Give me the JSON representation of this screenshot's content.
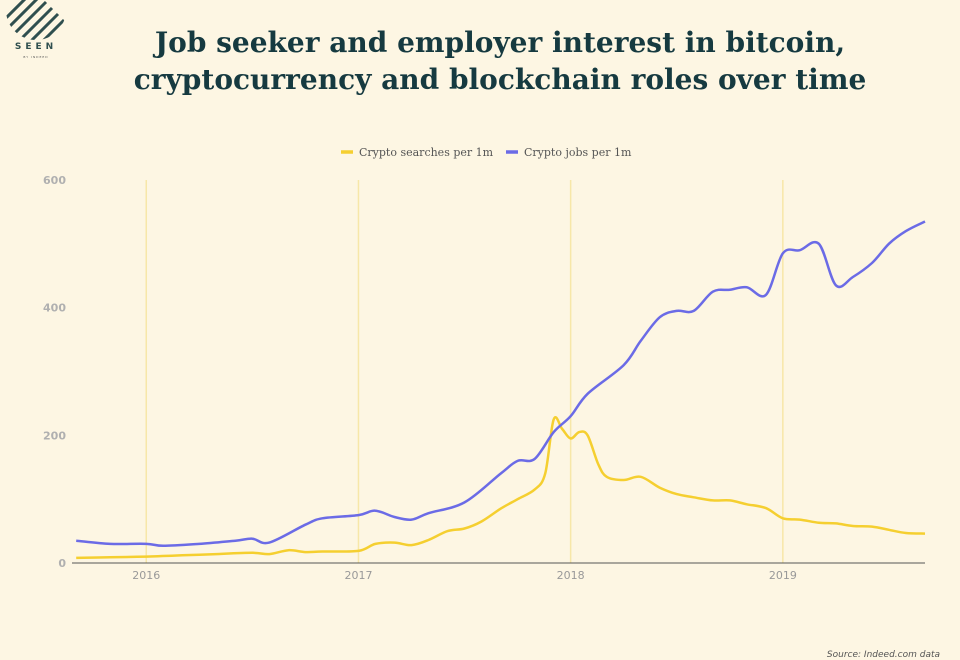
{
  "header": {
    "title_line1": "Job seeker and employer interest in bitcoin,",
    "title_line2": "cryptocurrency and blockchain roles over time",
    "logo_text": "SEEN",
    "logo_subtext": "BY INDEED"
  },
  "footer": {
    "source": "Source: Indeed.com data"
  },
  "colors": {
    "searches": "#f5cf30",
    "jobs": "#6b6be6",
    "grid": "#f7e7a8",
    "axis": "#555555"
  },
  "chart_data": {
    "type": "line",
    "title": "Job seeker and employer interest in bitcoin, cryptocurrency and blockchain roles over time",
    "xlim": [
      2015.65,
      2019.67
    ],
    "ylim": [
      0,
      600
    ],
    "y_ticks": [
      0,
      200,
      400,
      600
    ],
    "x_ticks": [
      {
        "label": "2016",
        "value": 2016
      },
      {
        "label": "2017",
        "value": 2017
      },
      {
        "label": "2018",
        "value": 2018
      },
      {
        "label": "2019",
        "value": 2019
      }
    ],
    "grid": "vertical at year boundaries",
    "legend_position": "top",
    "series": [
      {
        "name": "Crypto searches per 1m",
        "color": "#f5cf30",
        "x": [
          2015.67,
          2015.83,
          2016.0,
          2016.17,
          2016.33,
          2016.5,
          2016.58,
          2016.67,
          2016.75,
          2016.83,
          2017.0,
          2017.08,
          2017.17,
          2017.25,
          2017.33,
          2017.42,
          2017.5,
          2017.58,
          2017.67,
          2017.75,
          2017.83,
          2017.88,
          2017.92,
          2017.96,
          2018.0,
          2018.04,
          2018.08,
          2018.13,
          2018.17,
          2018.25,
          2018.33,
          2018.42,
          2018.5,
          2018.58,
          2018.67,
          2018.75,
          2018.83,
          2018.92,
          2019.0,
          2019.08,
          2019.17,
          2019.25,
          2019.33,
          2019.42,
          2019.5,
          2019.58,
          2019.67
        ],
        "values": [
          8,
          9,
          10,
          12,
          14,
          16,
          14,
          20,
          17,
          18,
          19,
          30,
          32,
          28,
          36,
          50,
          54,
          65,
          85,
          100,
          115,
          140,
          225,
          210,
          195,
          205,
          200,
          155,
          135,
          130,
          135,
          118,
          108,
          103,
          98,
          98,
          92,
          86,
          70,
          68,
          63,
          62,
          58,
          57,
          52,
          47,
          46
        ]
      },
      {
        "name": "Crypto jobs per 1m",
        "color": "#6b6be6",
        "x": [
          2015.67,
          2015.83,
          2016.0,
          2016.08,
          2016.25,
          2016.42,
          2016.5,
          2016.58,
          2016.75,
          2016.83,
          2017.0,
          2017.08,
          2017.17,
          2017.25,
          2017.33,
          2017.5,
          2017.67,
          2017.75,
          2017.83,
          2017.92,
          2018.0,
          2018.08,
          2018.25,
          2018.33,
          2018.42,
          2018.5,
          2018.58,
          2018.67,
          2018.75,
          2018.83,
          2018.92,
          2019.0,
          2019.08,
          2019.17,
          2019.25,
          2019.33,
          2019.42,
          2019.5,
          2019.58,
          2019.67
        ],
        "values": [
          35,
          30,
          30,
          27,
          30,
          35,
          38,
          32,
          60,
          70,
          75,
          82,
          72,
          68,
          78,
          95,
          140,
          160,
          163,
          205,
          230,
          265,
          310,
          348,
          385,
          395,
          395,
          425,
          428,
          432,
          420,
          485,
          490,
          500,
          435,
          448,
          470,
          500,
          520,
          535
        ]
      }
    ]
  }
}
